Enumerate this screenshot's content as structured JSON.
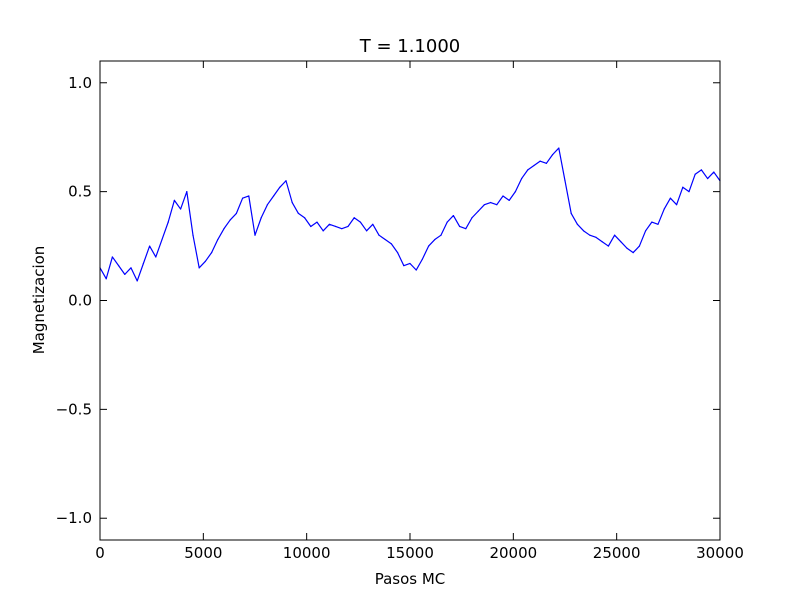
{
  "chart_data": {
    "type": "line",
    "title": "T = 1.1000",
    "xlabel": "Pasos MC",
    "ylabel": "Magnetizacion",
    "xlim": [
      0,
      30000
    ],
    "ylim": [
      -1.1,
      1.1
    ],
    "x_ticks": [
      0,
      5000,
      10000,
      15000,
      20000,
      25000,
      30000
    ],
    "x_tick_labels": [
      "0",
      "5000",
      "10000",
      "15000",
      "20000",
      "25000",
      "30000"
    ],
    "y_ticks": [
      -1.0,
      -0.5,
      0.0,
      0.5,
      1.0
    ],
    "y_tick_labels": [
      "−1.0",
      "−0.5",
      "0.0",
      "0.5",
      "1.0"
    ],
    "grid": false,
    "legend": "none",
    "series": [
      {
        "color": "#0000ff",
        "x": [
          0,
          300,
          600,
          900,
          1200,
          1500,
          1800,
          2100,
          2400,
          2700,
          3000,
          3300,
          3600,
          3900,
          4200,
          4500,
          4800,
          5100,
          5400,
          5700,
          6000,
          6300,
          6600,
          6900,
          7200,
          7500,
          7800,
          8100,
          8400,
          8700,
          9000,
          9300,
          9600,
          9900,
          10200,
          10500,
          10800,
          11100,
          11400,
          11700,
          12000,
          12300,
          12600,
          12900,
          13200,
          13500,
          13800,
          14100,
          14400,
          14700,
          15000,
          15300,
          15600,
          15900,
          16200,
          16500,
          16800,
          17100,
          17400,
          17700,
          18000,
          18300,
          18600,
          18900,
          19200,
          19500,
          19800,
          20100,
          20400,
          20700,
          21000,
          21300,
          21600,
          21900,
          22200,
          22500,
          22800,
          23100,
          23400,
          23700,
          24000,
          24300,
          24600,
          24900,
          25200,
          25500,
          25800,
          26100,
          26400,
          26700,
          27000,
          27300,
          27600,
          27900,
          28200,
          28500,
          28800,
          29100,
          29400,
          29700,
          30000
        ],
        "y": [
          0.15,
          0.1,
          0.2,
          0.16,
          0.12,
          0.15,
          0.09,
          0.17,
          0.25,
          0.2,
          0.28,
          0.36,
          0.46,
          0.42,
          0.5,
          0.3,
          0.15,
          0.18,
          0.22,
          0.28,
          0.33,
          0.37,
          0.4,
          0.47,
          0.48,
          0.3,
          0.38,
          0.44,
          0.48,
          0.52,
          0.55,
          0.45,
          0.4,
          0.38,
          0.34,
          0.36,
          0.32,
          0.35,
          0.34,
          0.33,
          0.34,
          0.38,
          0.36,
          0.32,
          0.35,
          0.3,
          0.28,
          0.26,
          0.22,
          0.16,
          0.17,
          0.14,
          0.19,
          0.25,
          0.28,
          0.3,
          0.36,
          0.39,
          0.34,
          0.33,
          0.38,
          0.41,
          0.44,
          0.45,
          0.44,
          0.48,
          0.46,
          0.5,
          0.56,
          0.6,
          0.62,
          0.64,
          0.63,
          0.67,
          0.7,
          0.55,
          0.4,
          0.35,
          0.32,
          0.3,
          0.29,
          0.27,
          0.25,
          0.3,
          0.27,
          0.24,
          0.22,
          0.25,
          0.32,
          0.36,
          0.35,
          0.42,
          0.47,
          0.44,
          0.52,
          0.5,
          0.58,
          0.6,
          0.56,
          0.59,
          0.55
        ]
      }
    ]
  }
}
